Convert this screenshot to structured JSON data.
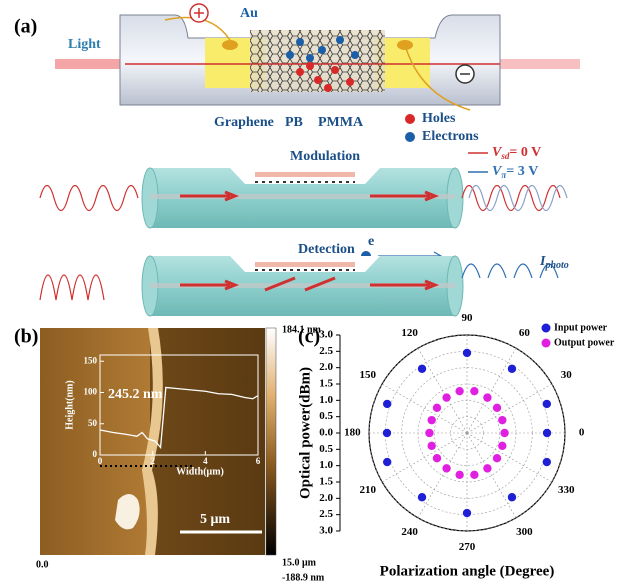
{
  "panel_a": {
    "label": "(a)",
    "light": "Light",
    "au": "Au",
    "graphene": "Graphene",
    "pb": "PB",
    "pmma": "PMMA",
    "holes": "Holes",
    "electrons": "Electrons",
    "modulation": "Modulation",
    "detection": "Detection",
    "electron_symbol": "e",
    "v_sd": {
      "symbol": "V",
      "subscript": "sd",
      "rest": "= 0 V"
    },
    "v_pi": {
      "symbol": "V",
      "subscript": "π",
      "rest": "= 3 V"
    },
    "i_photo": {
      "symbol": "I",
      "subscript": "photo"
    }
  },
  "panel_b": {
    "label": "(b)",
    "colorbar_max": "184.1 nm",
    "colorbar_min": "-188.9 nm",
    "x_start": "0.0",
    "x_end": "15.0 μm",
    "scale_bar": "5 μm",
    "inset": {
      "xlabel": "Width(μm)",
      "ylabel": "Height(nm)",
      "annotation": "245.2 nm",
      "x": [
        0,
        0.5,
        1.0,
        1.4,
        1.6,
        1.8,
        2.1,
        2.3,
        2.4,
        2.5,
        3.0,
        3.5,
        4.0,
        4.5,
        5.0,
        5.5,
        5.8,
        6.0
      ],
      "values": [
        40,
        36,
        33,
        30,
        36,
        26,
        22,
        12,
        60,
        108,
        106,
        104,
        102,
        98,
        97,
        92,
        90,
        95
      ],
      "xlim": [
        0,
        6
      ],
      "ylim": [
        0,
        160
      ],
      "xticks": [
        0,
        2,
        4,
        6
      ],
      "yticks": [
        0,
        50,
        100,
        150
      ]
    }
  },
  "chart_data": {
    "type": "polar",
    "label": "(c)",
    "xlabel": "Polarization angle (Degree)",
    "ylabel": "Optical power(dBm)",
    "rlim": [
      0,
      3
    ],
    "rticks": [
      {
        "value": 0,
        "label": "0.0"
      },
      {
        "value": 0.5,
        "label": "0.5"
      },
      {
        "value": 1,
        "label": "1.0"
      },
      {
        "value": 1.5,
        "label": "1.5"
      },
      {
        "value": 2,
        "label": "2.0"
      },
      {
        "value": 2.5,
        "label": "2.5"
      },
      {
        "value": 3,
        "label": "3.0"
      }
    ],
    "xticks": [
      0,
      30,
      60,
      90,
      120,
      150,
      180,
      210,
      240,
      270,
      300,
      330
    ],
    "grid": true,
    "legend": "upper right",
    "series": [
      {
        "name": "Input power",
        "color": "#1f1fd6",
        "x": [
          0,
          20,
          55,
          90,
          125,
          160,
          180,
          200,
          235,
          270,
          305,
          340
        ],
        "values": [
          2.45,
          2.6,
          2.4,
          2.45,
          2.4,
          2.6,
          2.45,
          2.6,
          2.4,
          2.45,
          2.4,
          2.6
        ]
      },
      {
        "name": "Output power",
        "color": "#e020e0",
        "x": [
          0,
          20,
          40,
          60,
          80,
          100,
          120,
          140,
          160,
          180,
          200,
          220,
          240,
          260,
          280,
          300,
          320,
          340
        ],
        "values": [
          1.15,
          1.15,
          1.2,
          1.25,
          1.3,
          1.3,
          1.25,
          1.2,
          1.15,
          1.15,
          1.15,
          1.2,
          1.25,
          1.3,
          1.3,
          1.25,
          1.2,
          1.15
        ]
      }
    ]
  }
}
